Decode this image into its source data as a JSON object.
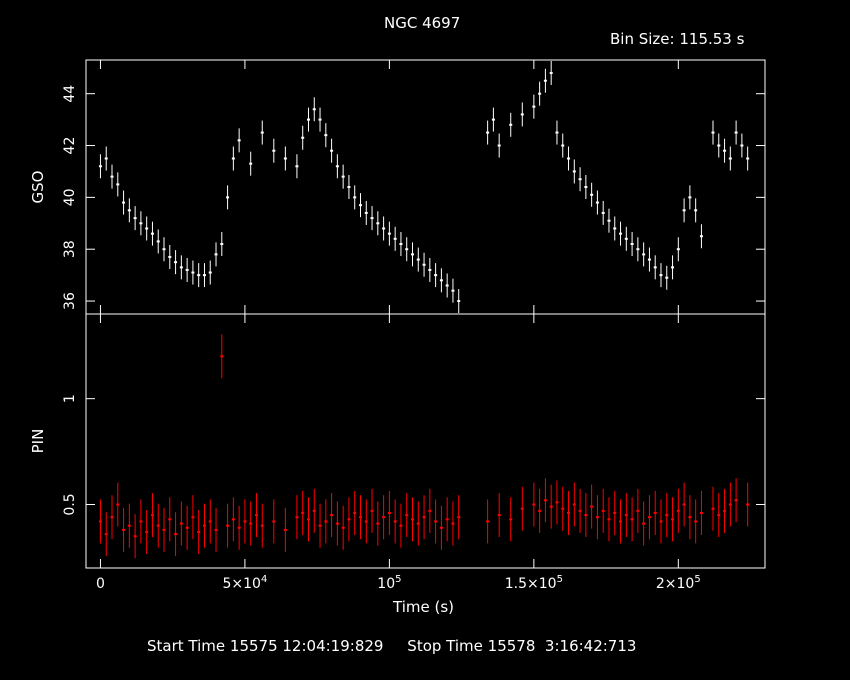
{
  "chart_data": {
    "type": "line",
    "title": "NGC 4697",
    "bin_size_label": "Bin Size:",
    "bin_size_value": "115.53 s",
    "bin_size_seconds": 115.53,
    "xlabel": "Time (s)",
    "xlim": [
      -5000,
      230000
    ],
    "x_ticks": [
      {
        "value": 0,
        "label": "0",
        "sup": ""
      },
      {
        "value": 50000,
        "label": "5×10",
        "sup": "4"
      },
      {
        "value": 100000,
        "label": "10",
        "sup": "5"
      },
      {
        "value": 150000,
        "label": "1.5×10",
        "sup": "5"
      },
      {
        "value": 200000,
        "label": "2×10",
        "sup": "5"
      }
    ],
    "panels": [
      {
        "name": "GSO",
        "ylabel": "GSO",
        "color": "#ffffff",
        "ylim": [
          35.5,
          45.3
        ],
        "y_ticks": [
          36,
          38,
          40,
          42,
          44
        ],
        "series": [
          {
            "name": "GSO",
            "points": [
              [
                0,
                41.2
              ],
              [
                2000,
                41.5
              ],
              [
                4000,
                40.8
              ],
              [
                6000,
                40.5
              ],
              [
                8000,
                39.8
              ],
              [
                10000,
                39.5
              ],
              [
                12000,
                39.2
              ],
              [
                14000,
                39.0
              ],
              [
                16000,
                38.8
              ],
              [
                18000,
                38.6
              ],
              [
                20000,
                38.3
              ],
              [
                22000,
                38.0
              ],
              [
                24000,
                37.7
              ],
              [
                26000,
                37.5
              ],
              [
                28000,
                37.3
              ],
              [
                30000,
                37.2
              ],
              [
                32000,
                37.1
              ],
              [
                34000,
                37.0
              ],
              [
                36000,
                37.0
              ],
              [
                38000,
                37.1
              ],
              [
                40000,
                37.8
              ],
              [
                42000,
                38.2
              ],
              [
                44000,
                40.0
              ],
              [
                46000,
                41.5
              ],
              [
                48000,
                42.2
              ],
              [
                52000,
                41.3
              ],
              [
                56000,
                42.5
              ],
              [
                60000,
                41.8
              ],
              [
                64000,
                41.5
              ],
              [
                68000,
                41.2
              ],
              [
                70000,
                42.3
              ],
              [
                72000,
                43.0
              ],
              [
                74000,
                43.4
              ],
              [
                76000,
                43.0
              ],
              [
                78000,
                42.4
              ],
              [
                80000,
                41.8
              ],
              [
                82000,
                41.2
              ],
              [
                84000,
                40.8
              ],
              [
                86000,
                40.4
              ],
              [
                88000,
                40.0
              ],
              [
                90000,
                39.7
              ],
              [
                92000,
                39.4
              ],
              [
                94000,
                39.2
              ],
              [
                96000,
                39.0
              ],
              [
                98000,
                38.8
              ],
              [
                100000,
                38.6
              ],
              [
                102000,
                38.4
              ],
              [
                104000,
                38.2
              ],
              [
                106000,
                38.0
              ],
              [
                108000,
                37.8
              ],
              [
                110000,
                37.6
              ],
              [
                112000,
                37.4
              ],
              [
                114000,
                37.2
              ],
              [
                116000,
                37.0
              ],
              [
                118000,
                36.8
              ],
              [
                120000,
                36.6
              ],
              [
                122000,
                36.4
              ],
              [
                124000,
                36.0
              ],
              [
                134000,
                42.5
              ],
              [
                136000,
                43.0
              ],
              [
                138000,
                42.0
              ],
              [
                142000,
                42.8
              ],
              [
                146000,
                43.2
              ],
              [
                150000,
                43.5
              ],
              [
                152000,
                44.0
              ],
              [
                154000,
                44.5
              ],
              [
                156000,
                44.8
              ],
              [
                158000,
                42.5
              ],
              [
                160000,
                42.0
              ],
              [
                162000,
                41.5
              ],
              [
                164000,
                41.0
              ],
              [
                166000,
                40.7
              ],
              [
                168000,
                40.4
              ],
              [
                170000,
                40.1
              ],
              [
                172000,
                39.8
              ],
              [
                174000,
                39.4
              ],
              [
                176000,
                39.1
              ],
              [
                178000,
                38.8
              ],
              [
                180000,
                38.6
              ],
              [
                182000,
                38.4
              ],
              [
                184000,
                38.2
              ],
              [
                186000,
                38.0
              ],
              [
                188000,
                37.8
              ],
              [
                190000,
                37.6
              ],
              [
                192000,
                37.3
              ],
              [
                194000,
                37.0
              ],
              [
                196000,
                36.9
              ],
              [
                198000,
                37.3
              ],
              [
                200000,
                38.0
              ],
              [
                202000,
                39.5
              ],
              [
                204000,
                40.0
              ],
              [
                206000,
                39.5
              ],
              [
                208000,
                38.5
              ],
              [
                212000,
                42.5
              ],
              [
                214000,
                42.0
              ],
              [
                216000,
                41.8
              ],
              [
                218000,
                41.5
              ],
              [
                220000,
                42.5
              ],
              [
                222000,
                42.0
              ],
              [
                224000,
                41.5
              ]
            ]
          }
        ]
      },
      {
        "name": "PIN",
        "ylabel": "PIN",
        "color": "#ff0000",
        "ylim": [
          0.2,
          1.4
        ],
        "y_ticks": [
          0.5,
          1
        ],
        "series": [
          {
            "name": "PIN",
            "points": [
              [
                0,
                0.42
              ],
              [
                2000,
                0.36
              ],
              [
                4000,
                0.44
              ],
              [
                6000,
                0.5
              ],
              [
                8000,
                0.38
              ],
              [
                10000,
                0.4
              ],
              [
                12000,
                0.35
              ],
              [
                14000,
                0.42
              ],
              [
                16000,
                0.37
              ],
              [
                18000,
                0.45
              ],
              [
                20000,
                0.4
              ],
              [
                22000,
                0.38
              ],
              [
                24000,
                0.43
              ],
              [
                26000,
                0.36
              ],
              [
                28000,
                0.41
              ],
              [
                30000,
                0.39
              ],
              [
                32000,
                0.44
              ],
              [
                34000,
                0.37
              ],
              [
                36000,
                0.4
              ],
              [
                38000,
                0.42
              ],
              [
                40000,
                0.38
              ],
              [
                42000,
                1.2
              ],
              [
                44000,
                0.4
              ],
              [
                46000,
                0.43
              ],
              [
                48000,
                0.39
              ],
              [
                50000,
                0.42
              ],
              [
                52000,
                0.41
              ],
              [
                54000,
                0.45
              ],
              [
                56000,
                0.4
              ],
              [
                60000,
                0.42
              ],
              [
                64000,
                0.38
              ],
              [
                68000,
                0.44
              ],
              [
                70000,
                0.46
              ],
              [
                72000,
                0.43
              ],
              [
                74000,
                0.47
              ],
              [
                76000,
                0.4
              ],
              [
                78000,
                0.42
              ],
              [
                80000,
                0.45
              ],
              [
                82000,
                0.41
              ],
              [
                84000,
                0.39
              ],
              [
                86000,
                0.43
              ],
              [
                88000,
                0.46
              ],
              [
                90000,
                0.44
              ],
              [
                92000,
                0.42
              ],
              [
                94000,
                0.47
              ],
              [
                96000,
                0.41
              ],
              [
                98000,
                0.44
              ],
              [
                100000,
                0.46
              ],
              [
                102000,
                0.42
              ],
              [
                104000,
                0.4
              ],
              [
                106000,
                0.45
              ],
              [
                108000,
                0.43
              ],
              [
                110000,
                0.41
              ],
              [
                112000,
                0.44
              ],
              [
                114000,
                0.47
              ],
              [
                116000,
                0.42
              ],
              [
                118000,
                0.39
              ],
              [
                120000,
                0.43
              ],
              [
                122000,
                0.41
              ],
              [
                124000,
                0.44
              ],
              [
                134000,
                0.42
              ],
              [
                138000,
                0.45
              ],
              [
                142000,
                0.43
              ],
              [
                146000,
                0.48
              ],
              [
                150000,
                0.5
              ],
              [
                152000,
                0.47
              ],
              [
                154000,
                0.52
              ],
              [
                156000,
                0.49
              ],
              [
                158000,
                0.51
              ],
              [
                160000,
                0.48
              ],
              [
                162000,
                0.46
              ],
              [
                164000,
                0.5
              ],
              [
                166000,
                0.47
              ],
              [
                168000,
                0.45
              ],
              [
                170000,
                0.49
              ],
              [
                172000,
                0.44
              ],
              [
                174000,
                0.47
              ],
              [
                176000,
                0.43
              ],
              [
                178000,
                0.46
              ],
              [
                180000,
                0.42
              ],
              [
                182000,
                0.45
              ],
              [
                184000,
                0.43
              ],
              [
                186000,
                0.47
              ],
              [
                188000,
                0.41
              ],
              [
                190000,
                0.44
              ],
              [
                192000,
                0.46
              ],
              [
                194000,
                0.42
              ],
              [
                196000,
                0.45
              ],
              [
                198000,
                0.43
              ],
              [
                200000,
                0.47
              ],
              [
                202000,
                0.5
              ],
              [
                204000,
                0.44
              ],
              [
                206000,
                0.42
              ],
              [
                208000,
                0.46
              ],
              [
                212000,
                0.48
              ],
              [
                214000,
                0.45
              ],
              [
                216000,
                0.47
              ],
              [
                218000,
                0.5
              ],
              [
                220000,
                0.52
              ],
              [
                224000,
                0.5
              ]
            ]
          }
        ]
      }
    ],
    "grid": false,
    "legend": "none"
  },
  "footer": {
    "start_label": "Start Time",
    "start_value": "15575 12:04:19:829",
    "stop_label": "Stop Time",
    "stop_value": "15578  3:16:42:713"
  }
}
